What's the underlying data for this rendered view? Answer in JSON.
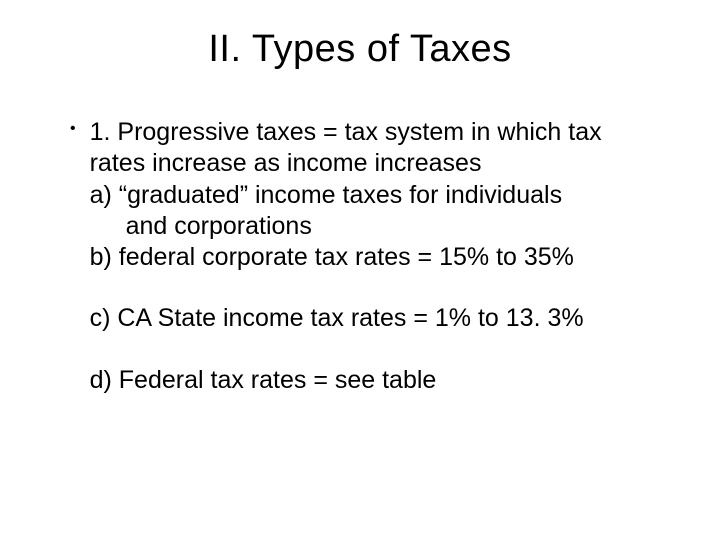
{
  "slide": {
    "title": "II. Types of Taxes",
    "bullet": {
      "line1": "1. Progressive taxes = tax system in which tax",
      "line2": "rates increase as income increases",
      "line3": "a) “graduated” income taxes for individuals",
      "line4": "and corporations",
      "line5": "b) federal corporate tax rates = 15% to 35%",
      "line6": "c) CA State income tax rates = 1% to 13. 3%",
      "line7": "d) Federal tax rates = see table"
    }
  },
  "style": {
    "background_color": "#ffffff",
    "text_color": "#000000",
    "title_fontsize": 38,
    "body_fontsize": 25,
    "font_family": "Arial"
  }
}
